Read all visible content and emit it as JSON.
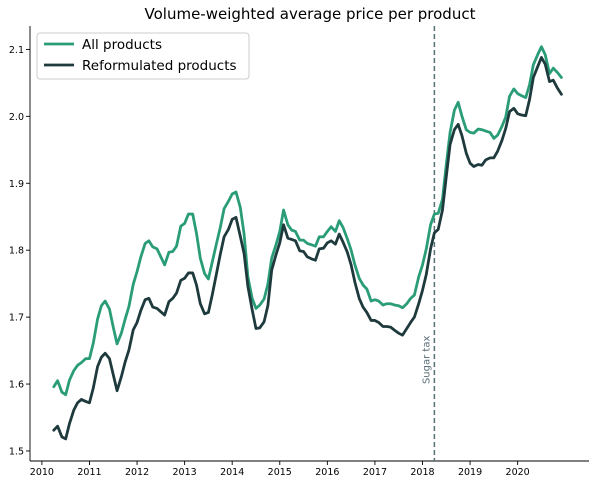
{
  "chart_data": {
    "type": "line",
    "title": "Volume-weighted average price per product",
    "xlabel": "",
    "ylabel": "",
    "xlim": [
      2009.75,
      2021.5
    ],
    "ylim": [
      1.485,
      2.135
    ],
    "x_ticks": [
      2010,
      2011,
      2012,
      2013,
      2014,
      2015,
      2016,
      2017,
      2018,
      2019,
      2020
    ],
    "x_tick_labels": [
      "2010",
      "2011",
      "2012",
      "2013",
      "2014",
      "2015",
      "2016",
      "2017",
      "2018",
      "2019",
      "2020"
    ],
    "y_ticks": [
      1.5,
      1.6,
      1.7,
      1.8,
      1.9,
      2.0,
      2.1
    ],
    "y_tick_labels": [
      "1.5",
      "1.6",
      "1.7",
      "1.8",
      "1.9",
      "2.0",
      "2.1"
    ],
    "grid": false,
    "legend_position": "top-left",
    "annotation": {
      "x": 2018.25,
      "label": "Sugar tax",
      "color": "#5a6e78"
    },
    "series": [
      {
        "name": "All products",
        "color": "#2a9d78",
        "x": [
          2010.25,
          2010.33,
          2010.42,
          2010.5,
          2010.58,
          2010.67,
          2010.75,
          2010.83,
          2010.92,
          2011.0,
          2011.08,
          2011.17,
          2011.25,
          2011.33,
          2011.42,
          2011.5,
          2011.58,
          2011.67,
          2011.75,
          2011.83,
          2011.92,
          2012.0,
          2012.08,
          2012.17,
          2012.25,
          2012.33,
          2012.42,
          2012.5,
          2012.58,
          2012.67,
          2012.75,
          2012.83,
          2012.92,
          2013.0,
          2013.08,
          2013.17,
          2013.25,
          2013.33,
          2013.42,
          2013.5,
          2013.58,
          2013.67,
          2013.75,
          2013.83,
          2013.92,
          2014.0,
          2014.08,
          2014.17,
          2014.25,
          2014.33,
          2014.42,
          2014.5,
          2014.58,
          2014.67,
          2014.75,
          2014.83,
          2014.92,
          2015.0,
          2015.08,
          2015.17,
          2015.25,
          2015.33,
          2015.42,
          2015.5,
          2015.58,
          2015.67,
          2015.75,
          2015.83,
          2015.92,
          2016.0,
          2016.08,
          2016.17,
          2016.25,
          2016.33,
          2016.42,
          2016.5,
          2016.58,
          2016.67,
          2016.75,
          2016.83,
          2016.92,
          2017.0,
          2017.08,
          2017.17,
          2017.25,
          2017.33,
          2017.42,
          2017.5,
          2017.58,
          2017.67,
          2017.75,
          2017.83,
          2017.92,
          2018.0,
          2018.08,
          2018.17,
          2018.25,
          2018.33,
          2018.42,
          2018.5,
          2018.58,
          2018.67,
          2018.75,
          2018.83,
          2018.92,
          2019.0,
          2019.08,
          2019.17,
          2019.25,
          2019.33,
          2019.42,
          2019.5,
          2019.58,
          2019.67,
          2019.75,
          2019.83,
          2019.92,
          2020.0,
          2020.08,
          2020.17,
          2020.25,
          2020.33,
          2020.42,
          2020.5,
          2020.58,
          2020.67,
          2020.75,
          2020.83,
          2020.92
        ],
        "y": [
          1.596,
          1.605,
          1.588,
          1.584,
          1.606,
          1.62,
          1.628,
          1.632,
          1.638,
          1.638,
          1.661,
          1.697,
          1.717,
          1.724,
          1.712,
          1.685,
          1.66,
          1.676,
          1.697,
          1.716,
          1.749,
          1.768,
          1.79,
          1.81,
          1.814,
          1.805,
          1.802,
          1.79,
          1.778,
          1.797,
          1.798,
          1.806,
          1.836,
          1.84,
          1.854,
          1.854,
          1.825,
          1.788,
          1.765,
          1.757,
          1.782,
          1.81,
          1.834,
          1.862,
          1.873,
          1.884,
          1.887,
          1.864,
          1.824,
          1.76,
          1.728,
          1.713,
          1.718,
          1.727,
          1.749,
          1.788,
          1.808,
          1.828,
          1.86,
          1.838,
          1.83,
          1.828,
          1.815,
          1.815,
          1.81,
          1.808,
          1.806,
          1.82,
          1.82,
          1.828,
          1.835,
          1.828,
          1.844,
          1.834,
          1.817,
          1.8,
          1.778,
          1.758,
          1.748,
          1.742,
          1.724,
          1.726,
          1.724,
          1.718,
          1.72,
          1.72,
          1.718,
          1.717,
          1.714,
          1.72,
          1.728,
          1.733,
          1.76,
          1.778,
          1.802,
          1.838,
          1.854,
          1.855,
          1.876,
          1.928,
          1.976,
          2.009,
          2.021,
          2.0,
          1.98,
          1.976,
          1.975,
          1.981,
          1.98,
          1.978,
          1.976,
          1.967,
          1.972,
          1.985,
          1.999,
          2.03,
          2.041,
          2.034,
          2.031,
          2.028,
          2.047,
          2.077,
          2.092,
          2.104,
          2.092,
          2.064,
          2.072,
          2.066,
          2.058
        ]
      },
      {
        "name": "Reformulated products",
        "color": "#1e3a3d",
        "x": [
          2010.25,
          2010.33,
          2010.42,
          2010.5,
          2010.58,
          2010.67,
          2010.75,
          2010.83,
          2010.92,
          2011.0,
          2011.08,
          2011.17,
          2011.25,
          2011.33,
          2011.42,
          2011.5,
          2011.58,
          2011.67,
          2011.75,
          2011.83,
          2011.92,
          2012.0,
          2012.08,
          2012.17,
          2012.25,
          2012.33,
          2012.42,
          2012.5,
          2012.58,
          2012.67,
          2012.75,
          2012.83,
          2012.92,
          2013.0,
          2013.08,
          2013.17,
          2013.25,
          2013.33,
          2013.42,
          2013.5,
          2013.58,
          2013.67,
          2013.75,
          2013.83,
          2013.92,
          2014.0,
          2014.08,
          2014.17,
          2014.25,
          2014.33,
          2014.42,
          2014.5,
          2014.58,
          2014.67,
          2014.75,
          2014.83,
          2014.92,
          2015.0,
          2015.08,
          2015.17,
          2015.25,
          2015.33,
          2015.42,
          2015.5,
          2015.58,
          2015.67,
          2015.75,
          2015.83,
          2015.92,
          2016.0,
          2016.08,
          2016.17,
          2016.25,
          2016.33,
          2016.42,
          2016.5,
          2016.58,
          2016.67,
          2016.75,
          2016.83,
          2016.92,
          2017.0,
          2017.08,
          2017.17,
          2017.25,
          2017.33,
          2017.42,
          2017.5,
          2017.58,
          2017.67,
          2017.75,
          2017.83,
          2017.92,
          2018.0,
          2018.08,
          2018.17,
          2018.25,
          2018.33,
          2018.42,
          2018.5,
          2018.58,
          2018.67,
          2018.75,
          2018.83,
          2018.92,
          2019.0,
          2019.08,
          2019.17,
          2019.25,
          2019.33,
          2019.42,
          2019.5,
          2019.58,
          2019.67,
          2019.75,
          2019.83,
          2019.92,
          2020.0,
          2020.08,
          2020.17,
          2020.25,
          2020.33,
          2020.42,
          2020.5,
          2020.58,
          2020.67,
          2020.75,
          2020.83,
          2020.92
        ],
        "y": [
          1.531,
          1.537,
          1.521,
          1.518,
          1.541,
          1.561,
          1.572,
          1.577,
          1.574,
          1.572,
          1.594,
          1.626,
          1.64,
          1.646,
          1.638,
          1.614,
          1.59,
          1.611,
          1.633,
          1.651,
          1.681,
          1.692,
          1.71,
          1.726,
          1.728,
          1.715,
          1.713,
          1.708,
          1.703,
          1.723,
          1.728,
          1.736,
          1.755,
          1.758,
          1.766,
          1.766,
          1.748,
          1.72,
          1.705,
          1.707,
          1.733,
          1.765,
          1.794,
          1.82,
          1.831,
          1.846,
          1.849,
          1.821,
          1.795,
          1.746,
          1.711,
          1.683,
          1.684,
          1.693,
          1.717,
          1.77,
          1.793,
          1.811,
          1.838,
          1.818,
          1.816,
          1.814,
          1.799,
          1.798,
          1.79,
          1.787,
          1.785,
          1.802,
          1.803,
          1.811,
          1.814,
          1.809,
          1.824,
          1.812,
          1.797,
          1.778,
          1.752,
          1.728,
          1.715,
          1.707,
          1.695,
          1.695,
          1.692,
          1.686,
          1.686,
          1.685,
          1.68,
          1.676,
          1.673,
          1.683,
          1.692,
          1.7,
          1.72,
          1.74,
          1.764,
          1.802,
          1.826,
          1.831,
          1.86,
          1.91,
          1.958,
          1.98,
          1.988,
          1.971,
          1.945,
          1.93,
          1.925,
          1.928,
          1.927,
          1.935,
          1.938,
          1.938,
          1.948,
          1.964,
          1.982,
          2.007,
          2.012,
          2.004,
          2.002,
          2.001,
          2.025,
          2.058,
          2.074,
          2.088,
          2.078,
          2.052,
          2.054,
          2.043,
          2.033
        ]
      }
    ]
  }
}
